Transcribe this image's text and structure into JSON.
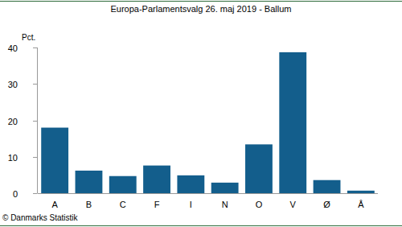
{
  "chart_data": {
    "type": "bar",
    "title": "Europa-Parlamentsvalg 26. maj 2019 - Ballum",
    "ylabel": "Pct.",
    "categories": [
      "A",
      "B",
      "C",
      "F",
      "I",
      "N",
      "O",
      "V",
      "Ø",
      "Å"
    ],
    "values": [
      18.0,
      6.2,
      4.7,
      7.6,
      4.9,
      2.9,
      13.4,
      38.7,
      3.6,
      0.7
    ],
    "color": "#135e8c",
    "ylim": [
      0,
      40
    ],
    "yticks": [
      0,
      10,
      20,
      30,
      40
    ],
    "grid": false,
    "source": "© Danmarks Statistik"
  }
}
